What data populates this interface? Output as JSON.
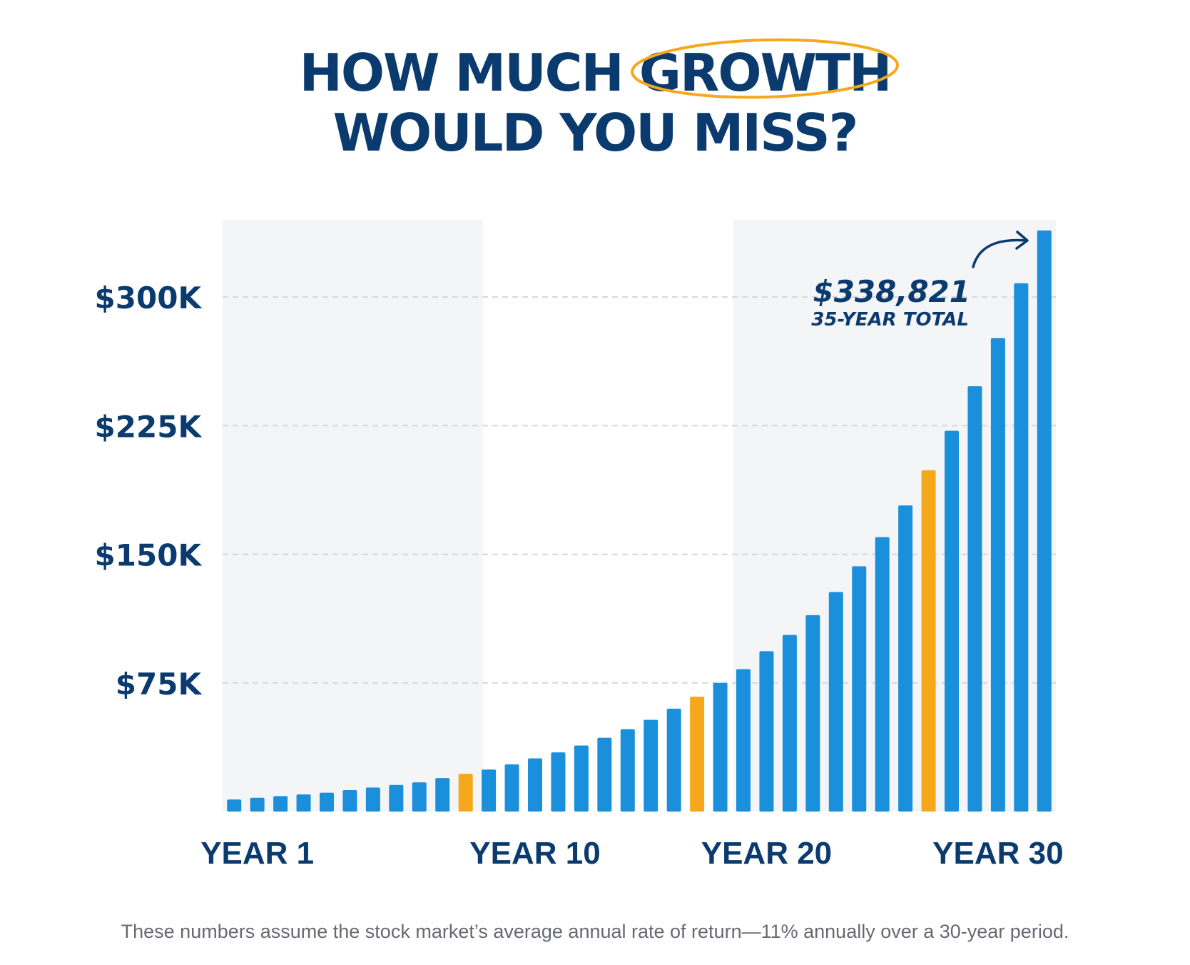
{
  "title": {
    "line1_prefix": "HOW MUCH",
    "highlight": "GROWTH",
    "line2": "WOULD YOU MISS?"
  },
  "colors": {
    "navy": "#0b3b6e",
    "blue": "#1a8fdb",
    "gold": "#f5a81c",
    "panel": "#f4f5f7",
    "grid": "#d5d7da"
  },
  "chart_data": {
    "type": "bar",
    "ylim": [
      0,
      345000
    ],
    "yticks": [
      {
        "value": 75000,
        "label": "$75K"
      },
      {
        "value": 150000,
        "label": "$150K"
      },
      {
        "value": 225000,
        "label": "$225K"
      },
      {
        "value": 300000,
        "label": "$300K"
      }
    ],
    "values": [
      7000,
      8000,
      9000,
      10000,
      11000,
      12500,
      14000,
      15500,
      17000,
      19500,
      22000,
      24500,
      27500,
      31000,
      34500,
      38500,
      43000,
      48000,
      53500,
      60000,
      67000,
      75000,
      83000,
      93500,
      103000,
      114500,
      128000,
      143000,
      160000,
      178500,
      199000,
      222000,
      248000,
      276000,
      308000,
      338821
    ],
    "highlighted_indices": [
      10,
      20,
      30
    ],
    "xtick_labels": [
      {
        "index": 1,
        "label": "YEAR 1"
      },
      {
        "index": 13,
        "label": "YEAR 10"
      },
      {
        "index": 23,
        "label": "YEAR 20"
      },
      {
        "index": 33,
        "label": "YEAR 30"
      }
    ],
    "annotation": {
      "value_label": "$338,821",
      "sub_label": "35-YEAR TOTAL"
    }
  },
  "footnote": "These numbers assume the stock market’s average annual rate of return—11% annually over a 30-year period."
}
